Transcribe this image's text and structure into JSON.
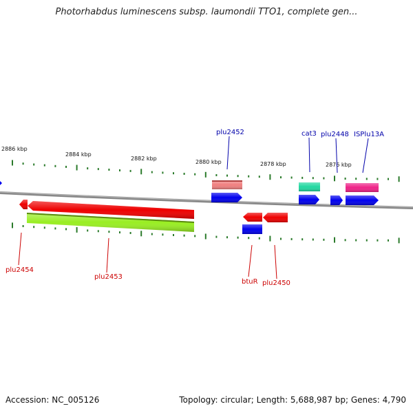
{
  "title": "Photorhabdus luminescens subsp. laumondii TTO1, complete gen...",
  "footer": {
    "accession": "Accession: NC_005126",
    "summary": "Topology: circular; Length: 5,688,987 bp; Genes: 4,790"
  },
  "colors": {
    "label_forward": "#0000aa",
    "label_reverse": "#cc0000",
    "tick": "#2a7a2a",
    "backbone": "#888888"
  },
  "scale_labels": [
    "2886 kbp",
    "2884 kbp",
    "2882 kbp",
    "2880 kbp",
    "2878 kbp",
    "2876 kbp"
  ],
  "features": [
    {
      "id": "f-pink-top",
      "strand": "+",
      "color": "#f08080",
      "shape": "box"
    },
    {
      "id": "f-blue-2452",
      "strand": "+",
      "color": "#0000ee",
      "shape": "arrow"
    },
    {
      "id": "f-cat3-teal",
      "strand": "+",
      "color": "#20d8a0",
      "shape": "box"
    },
    {
      "id": "f-cat3-blue",
      "strand": "+",
      "color": "#0000ee",
      "shape": "arrow"
    },
    {
      "id": "f-2448-blue",
      "strand": "+",
      "color": "#0000ee",
      "shape": "arrow"
    },
    {
      "id": "f-isplu-pink",
      "strand": "+",
      "color": "#ee2288",
      "shape": "box"
    },
    {
      "id": "f-isplu-blue",
      "strand": "+",
      "color": "#0000ee",
      "shape": "arrow"
    },
    {
      "id": "f-2454-red",
      "strand": "-",
      "color": "#ee0000",
      "shape": "arrow"
    },
    {
      "id": "f-2453-red",
      "strand": "-",
      "color": "#ee0000",
      "shape": "arrow"
    },
    {
      "id": "f-2453-green",
      "strand": "-",
      "color": "#99ee22",
      "shape": "box"
    },
    {
      "id": "f-btuR-red",
      "strand": "-",
      "color": "#ee0000",
      "shape": "arrow"
    },
    {
      "id": "f-btuR-blue",
      "strand": "-",
      "color": "#0000ee",
      "shape": "box"
    },
    {
      "id": "f-2450-red",
      "strand": "-",
      "color": "#ee0000",
      "shape": "arrow"
    }
  ],
  "gene_labels": [
    {
      "id": "lbl-plu2452",
      "text": "plu2452",
      "strand": "+"
    },
    {
      "id": "lbl-cat3",
      "text": "cat3",
      "strand": "+"
    },
    {
      "id": "lbl-plu2448",
      "text": "plu2448",
      "strand": "+"
    },
    {
      "id": "lbl-isplu13a",
      "text": "ISPlu13A",
      "strand": "+"
    },
    {
      "id": "lbl-plu2454",
      "text": "plu2454",
      "strand": "-"
    },
    {
      "id": "lbl-plu2453",
      "text": "plu2453",
      "strand": "-"
    },
    {
      "id": "lbl-btur",
      "text": "btuR",
      "strand": "-"
    },
    {
      "id": "lbl-plu2450",
      "text": "plu2450",
      "strand": "-"
    }
  ]
}
